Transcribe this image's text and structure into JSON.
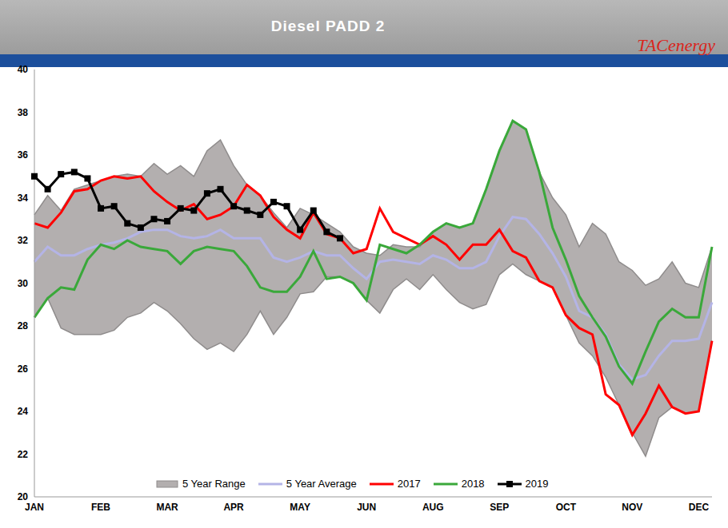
{
  "chart_data": {
    "type": "line",
    "title": "Diesel PADD 2",
    "logo": "TACenergy",
    "categories": [
      "JAN",
      null,
      null,
      null,
      null,
      "FEB",
      null,
      null,
      null,
      null,
      "MAR",
      null,
      null,
      null,
      null,
      "APR",
      null,
      null,
      null,
      null,
      "MAY",
      null,
      null,
      null,
      null,
      "JUN",
      null,
      null,
      null,
      null,
      "AUG",
      null,
      null,
      null,
      null,
      "SEP",
      null,
      null,
      null,
      null,
      "OCT",
      null,
      null,
      null,
      null,
      "NOV",
      null,
      null,
      null,
      null,
      "DEC",
      null
    ],
    "ylim": [
      20,
      40
    ],
    "yticks": [
      20,
      22,
      24,
      26,
      28,
      30,
      32,
      34,
      36,
      38,
      40
    ],
    "grid": false,
    "legend": "bottom",
    "series": [
      {
        "name": "5 Year Range",
        "type": "range",
        "color": "#b3afaf",
        "values": [
          [
            28.4,
            33.2
          ],
          [
            29.3,
            34.1
          ],
          [
            27.9,
            33.4
          ],
          [
            27.6,
            34.4
          ],
          [
            27.6,
            34.6
          ],
          [
            27.6,
            34.8
          ],
          [
            27.8,
            35.0
          ],
          [
            28.4,
            35.1
          ],
          [
            28.6,
            35.0
          ],
          [
            29.1,
            35.6
          ],
          [
            28.7,
            35.1
          ],
          [
            28.1,
            35.5
          ],
          [
            27.4,
            35.0
          ],
          [
            26.9,
            36.2
          ],
          [
            27.2,
            36.7
          ],
          [
            26.8,
            35.5
          ],
          [
            27.6,
            34.6
          ],
          [
            28.7,
            34.1
          ],
          [
            27.6,
            33.3
          ],
          [
            28.4,
            32.6
          ],
          [
            29.5,
            33.5
          ],
          [
            29.6,
            33.2
          ],
          [
            30.3,
            32.8
          ],
          [
            30.3,
            32.4
          ],
          [
            30.0,
            31.7
          ],
          [
            29.2,
            31.4
          ],
          [
            28.6,
            31.3
          ],
          [
            29.7,
            31.8
          ],
          [
            30.2,
            31.7
          ],
          [
            29.7,
            31.7
          ],
          [
            30.4,
            32.4
          ],
          [
            29.7,
            32.8
          ],
          [
            29.1,
            32.6
          ],
          [
            28.8,
            32.8
          ],
          [
            29.0,
            34.4
          ],
          [
            30.4,
            36.2
          ],
          [
            30.9,
            37.6
          ],
          [
            30.4,
            37.2
          ],
          [
            30.1,
            35.2
          ],
          [
            29.8,
            34.0
          ],
          [
            28.5,
            33.2
          ],
          [
            27.2,
            31.7
          ],
          [
            26.6,
            32.8
          ],
          [
            25.6,
            32.3
          ],
          [
            24.3,
            31.0
          ],
          [
            23.0,
            30.6
          ],
          [
            21.9,
            29.9
          ],
          [
            23.7,
            30.2
          ],
          [
            24.2,
            31.0
          ],
          [
            23.9,
            30.0
          ],
          [
            24.0,
            29.8
          ],
          [
            27.3,
            31.7
          ]
        ]
      },
      {
        "name": "5 Year Average",
        "color": "#b4b4e6",
        "values": [
          31.0,
          31.7,
          31.3,
          31.3,
          31.6,
          31.8,
          31.9,
          32.1,
          32.4,
          32.5,
          32.5,
          32.2,
          32.1,
          32.2,
          32.5,
          32.1,
          32.1,
          32.1,
          31.2,
          31.0,
          31.2,
          31.5,
          31.3,
          31.3,
          30.7,
          30.2,
          31.0,
          31.1,
          31.0,
          30.9,
          31.3,
          31.1,
          30.7,
          30.7,
          31.0,
          32.2,
          33.1,
          33.0,
          32.3,
          31.4,
          30.3,
          28.7,
          28.4,
          27.6,
          26.2,
          25.5,
          25.7,
          26.6,
          27.3,
          27.3,
          27.4,
          29.1
        ]
      },
      {
        "name": "2017",
        "color": "#ff0000",
        "values": [
          32.8,
          32.6,
          33.3,
          34.3,
          34.4,
          34.8,
          35.0,
          34.9,
          35.0,
          34.3,
          33.8,
          33.4,
          33.7,
          33.0,
          33.2,
          33.6,
          34.6,
          34.1,
          33.1,
          32.5,
          32.1,
          33.3,
          32.3,
          32.1,
          31.4,
          31.6,
          33.5,
          32.4,
          32.1,
          31.8,
          32.2,
          31.8,
          31.1,
          31.8,
          31.8,
          32.5,
          31.5,
          31.2,
          30.1,
          29.8,
          28.5,
          27.9,
          27.6,
          24.8,
          24.3,
          22.9,
          23.9,
          25.2,
          24.2,
          23.9,
          24.0,
          27.3
        ]
      },
      {
        "name": "2018",
        "color": "#3aa83a",
        "values": [
          28.4,
          29.3,
          29.8,
          29.7,
          31.1,
          31.8,
          31.6,
          32.0,
          31.7,
          31.6,
          31.5,
          30.9,
          31.5,
          31.7,
          31.6,
          31.5,
          30.8,
          29.8,
          29.6,
          29.6,
          30.3,
          31.5,
          30.2,
          30.3,
          30.0,
          29.2,
          31.8,
          31.6,
          31.4,
          31.8,
          32.4,
          32.8,
          32.6,
          32.8,
          34.4,
          36.2,
          37.6,
          37.2,
          35.2,
          32.6,
          31.1,
          29.4,
          28.4,
          27.5,
          26.1,
          25.3,
          26.8,
          28.2,
          28.8,
          28.4,
          28.4,
          31.7
        ]
      },
      {
        "name": "2019",
        "color": "#000000",
        "marker": "square",
        "values": [
          35.0,
          34.4,
          35.1,
          35.2,
          34.9,
          33.5,
          33.6,
          32.8,
          32.6,
          33.0,
          32.9,
          33.5,
          33.4,
          34.2,
          34.4,
          33.6,
          33.4,
          33.2,
          33.8,
          33.6,
          32.5,
          33.4,
          32.4,
          32.1,
          null,
          null,
          null,
          null,
          null,
          null,
          null,
          null,
          null,
          null,
          null,
          null,
          null,
          null,
          null,
          null,
          null,
          null,
          null,
          null,
          null,
          null,
          null,
          null,
          null,
          null,
          null,
          null
        ]
      }
    ]
  }
}
